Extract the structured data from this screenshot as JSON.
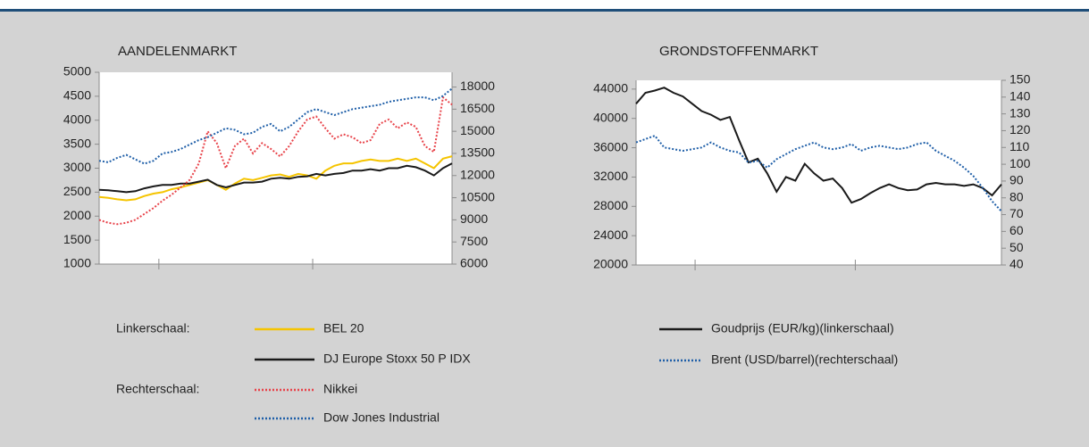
{
  "chart_data": [
    {
      "type": "line",
      "title": "AANDELENMARKT",
      "left_scale_label": "Linkerschaal:",
      "right_scale_label": "Rechterschaal:",
      "xlim": [
        0,
        39
      ],
      "xticks": [
        6.6,
        23.6
      ],
      "ylim": [
        1000,
        5000
      ],
      "yticks": [
        1000,
        1500,
        2000,
        2500,
        3000,
        3500,
        4000,
        4500,
        5000
      ],
      "y2lim": [
        6000,
        19000
      ],
      "y2ticks": [
        6000,
        7500,
        9000,
        10500,
        12000,
        13500,
        15000,
        16500,
        18000
      ],
      "series": [
        {
          "name": "BEL 20",
          "color": "#f5c400",
          "dash": "solid",
          "axis": "y",
          "values": [
            2400,
            2380,
            2350,
            2330,
            2350,
            2420,
            2470,
            2500,
            2560,
            2600,
            2650,
            2700,
            2750,
            2650,
            2550,
            2680,
            2780,
            2750,
            2800,
            2850,
            2870,
            2820,
            2880,
            2850,
            2780,
            2950,
            3050,
            3100,
            3100,
            3150,
            3180,
            3150,
            3150,
            3200,
            3150,
            3200,
            3100,
            3000,
            3200,
            3250
          ]
        },
        {
          "name": "DJ Europe Stoxx 50 P IDX",
          "color": "#1a1a1a",
          "dash": "solid",
          "axis": "y",
          "values": [
            2550,
            2540,
            2520,
            2500,
            2520,
            2580,
            2620,
            2650,
            2650,
            2680,
            2680,
            2720,
            2760,
            2650,
            2600,
            2650,
            2700,
            2700,
            2720,
            2780,
            2800,
            2780,
            2820,
            2830,
            2880,
            2850,
            2880,
            2900,
            2950,
            2950,
            2980,
            2950,
            3000,
            3000,
            3050,
            3020,
            2950,
            2850,
            3000,
            3100
          ]
        },
        {
          "name": "Nikkei",
          "color": "#e8434a",
          "dash": "dotted",
          "axis": "y2",
          "values": [
            9000,
            8800,
            8700,
            8800,
            9000,
            9400,
            9800,
            10300,
            10700,
            11200,
            11700,
            12800,
            15000,
            14200,
            12500,
            14000,
            14500,
            13500,
            14200,
            13800,
            13300,
            14000,
            15000,
            15800,
            16000,
            15200,
            14500,
            14800,
            14600,
            14200,
            14400,
            15500,
            15800,
            15200,
            15600,
            15300,
            14000,
            13600,
            17300,
            16800
          ]
        },
        {
          "name": "Dow Jones Industrial",
          "color": "#1f5fa8",
          "dash": "dotted",
          "axis": "y2",
          "values": [
            13000,
            12900,
            13200,
            13400,
            13100,
            12800,
            13000,
            13500,
            13600,
            13800,
            14100,
            14400,
            14600,
            14900,
            15200,
            15100,
            14800,
            14900,
            15300,
            15500,
            15000,
            15300,
            15800,
            16300,
            16500,
            16300,
            16100,
            16300,
            16500,
            16600,
            16700,
            16800,
            17000,
            17100,
            17200,
            17300,
            17300,
            17100,
            17400,
            17900
          ]
        }
      ]
    },
    {
      "type": "line",
      "title": "GRONDSTOFFENMARKT",
      "xlim": [
        0,
        39
      ],
      "xticks": [
        6.3,
        23.4
      ],
      "ylim": [
        20000,
        45200
      ],
      "yticks": [
        20000,
        24000,
        28000,
        32000,
        36000,
        40000,
        44000
      ],
      "y2lim": [
        40,
        150
      ],
      "y2ticks": [
        40,
        50,
        60,
        70,
        80,
        90,
        100,
        110,
        120,
        130,
        140,
        150
      ],
      "series": [
        {
          "name": "Goudprijs (EUR/kg)(linkerschaal)",
          "color": "#1a1a1a",
          "dash": "solid",
          "axis": "y",
          "values": [
            42000,
            43500,
            43800,
            44200,
            43500,
            43000,
            42000,
            41000,
            40500,
            39800,
            40200,
            37000,
            34000,
            34500,
            32500,
            30000,
            32000,
            31500,
            33800,
            32500,
            31500,
            31800,
            30500,
            28500,
            29000,
            29800,
            30500,
            31000,
            30500,
            30200,
            30300,
            31000,
            31200,
            31000,
            31000,
            30800,
            31000,
            30500,
            29500,
            31000
          ]
        },
        {
          "name": "Brent (USD/barrel)(rechterschaal)",
          "color": "#1f5fa8",
          "dash": "dotted",
          "axis": "y2",
          "values": [
            113,
            115,
            117,
            110,
            109,
            108,
            109,
            110,
            113,
            110,
            108,
            107,
            101,
            102,
            98,
            103,
            106,
            109,
            111,
            113,
            110,
            109,
            110,
            112,
            108,
            110,
            111,
            110,
            109,
            110,
            112,
            113,
            108,
            105,
            102,
            98,
            93,
            86,
            78,
            72
          ]
        }
      ]
    }
  ]
}
